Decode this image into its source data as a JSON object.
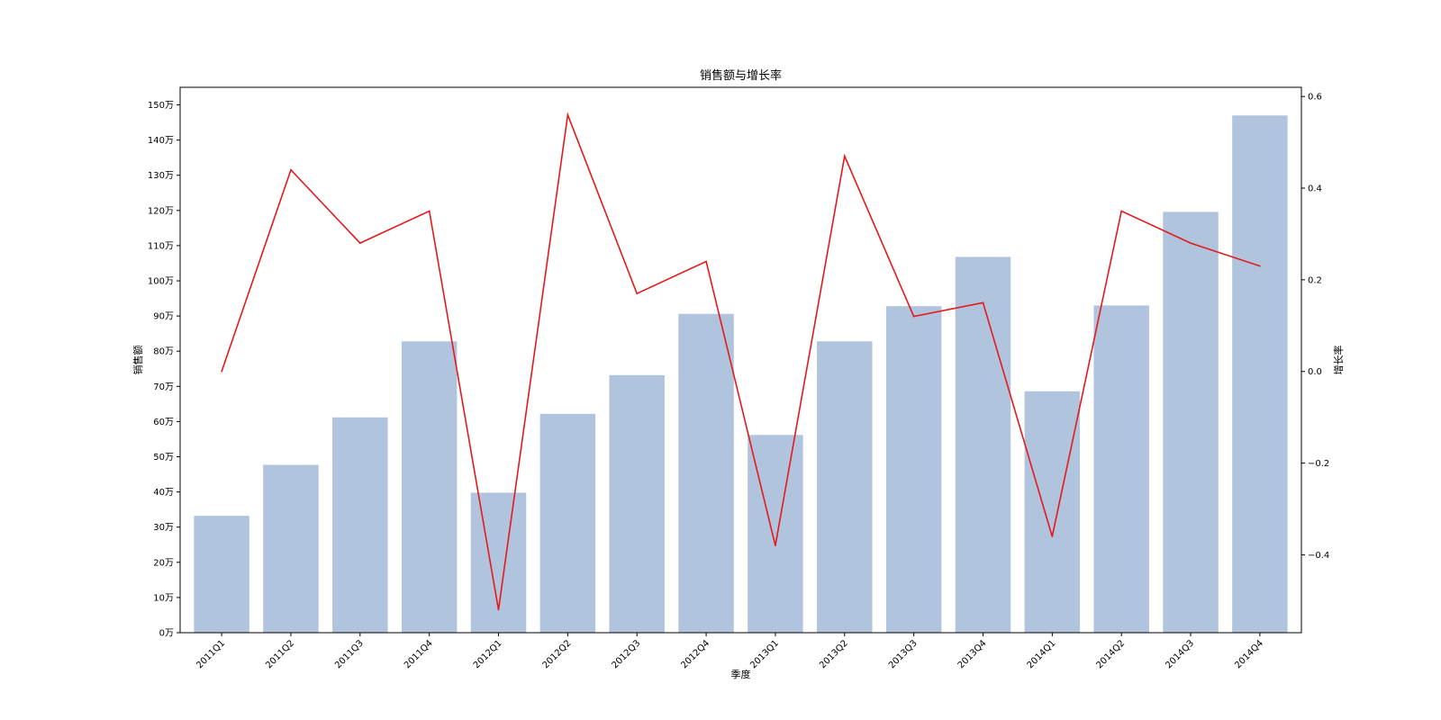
{
  "chart_data": {
    "type": "bar",
    "title": "销售额与增长率",
    "xlabel": "季度",
    "ylabel": "销售额",
    "y2label": "增长率",
    "categories": [
      "2011Q1",
      "2011Q2",
      "2011Q3",
      "2011Q4",
      "2012Q1",
      "2012Q2",
      "2012Q3",
      "2012Q4",
      "2013Q1",
      "2013Q2",
      "2013Q3",
      "2013Q4",
      "2014Q1",
      "2014Q2",
      "2014Q3",
      "2014Q4"
    ],
    "ylim": [
      0,
      1550000
    ],
    "yticks": [
      0,
      100000,
      200000,
      300000,
      400000,
      500000,
      600000,
      700000,
      800000,
      900000,
      1000000,
      1100000,
      1200000,
      1300000,
      1400000,
      1500000
    ],
    "yticklabels": [
      "0万",
      "10万",
      "20万",
      "30万",
      "40万",
      "50万",
      "60万",
      "70万",
      "80万",
      "90万",
      "100万",
      "110万",
      "120万",
      "130万",
      "140万",
      "150万"
    ],
    "y2lim": [
      -0.57,
      0.62
    ],
    "y2ticks": [
      -0.4,
      -0.2,
      0.0,
      0.2,
      0.4,
      0.6
    ],
    "y2ticklabels": [
      "−0.4",
      "−0.2",
      "0.0",
      "0.2",
      "0.4",
      "0.6"
    ],
    "series": [
      {
        "type": "bar",
        "axis": "left",
        "color": "#b0c4de",
        "values": [
          332000,
          477000,
          612000,
          828000,
          398000,
          622000,
          732000,
          906000,
          562000,
          828000,
          928000,
          1068000,
          686000,
          930000,
          1196000,
          1470000
        ]
      },
      {
        "type": "line",
        "axis": "right",
        "color": "#e31a1c",
        "values": [
          0.0,
          0.44,
          0.28,
          0.35,
          -0.52,
          0.56,
          0.17,
          0.24,
          -0.38,
          0.47,
          0.12,
          0.15,
          -0.36,
          0.35,
          0.28,
          0.23
        ]
      }
    ],
    "grid": false,
    "legend": "none"
  }
}
